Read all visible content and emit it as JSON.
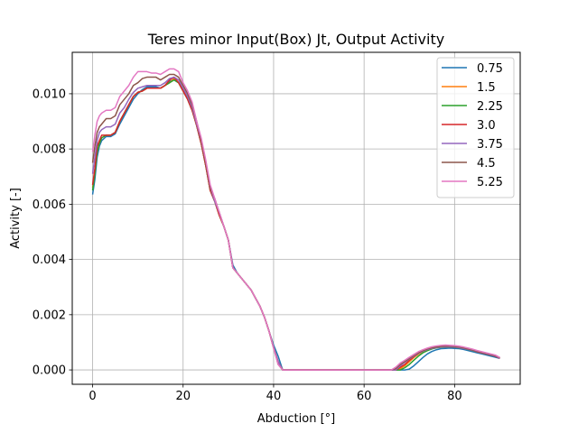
{
  "chart_data": {
    "type": "line",
    "title": "Teres minor Input(Box) Jt, Output Activity",
    "xlabel": "Abduction [°]",
    "ylabel": "Activity [-]",
    "xlim": [
      -4.5,
      94.5
    ],
    "ylim": [
      -0.00052,
      0.0115
    ],
    "x_ticks": [
      0,
      20,
      40,
      60,
      80
    ],
    "x_tick_labels": [
      "0",
      "20",
      "40",
      "60",
      "80"
    ],
    "y_ticks": [
      0.0,
      0.002,
      0.004,
      0.006,
      0.008,
      0.01
    ],
    "y_tick_labels": [
      "0.000",
      "0.002",
      "0.004",
      "0.006",
      "0.008",
      "0.010"
    ],
    "grid": true,
    "legend_position": "top-right",
    "x": [
      0,
      0.5,
      1,
      1.5,
      2,
      3,
      4,
      5,
      6,
      7,
      8,
      9,
      10,
      11,
      12,
      13,
      14,
      15,
      16,
      17,
      18,
      19,
      20,
      21,
      22,
      23,
      24,
      25,
      26,
      27,
      28,
      29,
      30,
      31,
      32,
      33,
      34,
      35,
      36,
      37,
      38,
      39,
      40,
      41,
      42,
      43,
      44,
      45,
      46,
      47,
      48,
      49,
      50,
      51,
      52,
      53,
      54,
      55,
      56,
      57,
      58,
      59,
      60,
      61,
      62,
      63,
      64,
      65,
      66,
      67,
      68,
      69,
      70,
      71,
      72,
      73,
      74,
      75,
      76,
      77,
      78,
      79,
      80,
      81,
      82,
      83,
      84,
      85,
      86,
      87,
      88,
      89,
      90
    ],
    "series": [
      {
        "name": "0.75",
        "color": "#1f77b4",
        "values": [
          0.00635,
          0.0069,
          0.0077,
          0.0081,
          0.0083,
          0.00845,
          0.00845,
          0.00855,
          0.0089,
          0.0092,
          0.0095,
          0.0098,
          0.01,
          0.01015,
          0.01025,
          0.01025,
          0.01025,
          0.0102,
          0.0103,
          0.01045,
          0.0105,
          0.0104,
          0.0101,
          0.0098,
          0.0094,
          0.00885,
          0.0082,
          0.0074,
          0.0065,
          0.0061,
          0.0056,
          0.0052,
          0.0047,
          0.0038,
          0.0035,
          0.0033,
          0.0031,
          0.0029,
          0.0026,
          0.0023,
          0.0019,
          0.0014,
          0.0009,
          0.0005,
          0.0,
          0.0,
          0.0,
          0.0,
          0.0,
          0.0,
          0.0,
          0.0,
          0.0,
          0.0,
          0.0,
          0.0,
          0.0,
          0.0,
          0.0,
          0.0,
          0.0,
          0.0,
          0.0,
          0.0,
          0.0,
          0.0,
          0.0,
          0.0,
          0.0,
          0.0,
          0.0,
          0.0,
          3e-05,
          0.00015,
          0.0003,
          0.00045,
          0.00058,
          0.00067,
          0.00073,
          0.00077,
          0.00078,
          0.00079,
          0.00078,
          0.00077,
          0.00074,
          0.0007,
          0.00066,
          0.00062,
          0.00058,
          0.00054,
          0.0005,
          0.00046,
          0.00042
        ]
      },
      {
        "name": "1.5",
        "color": "#ff7f0e",
        "values": [
          0.0066,
          0.00715,
          0.0079,
          0.0082,
          0.0084,
          0.0085,
          0.0085,
          0.0086,
          0.009,
          0.0093,
          0.0096,
          0.0099,
          0.01005,
          0.0101,
          0.0102,
          0.0102,
          0.0102,
          0.0102,
          0.0103,
          0.0104,
          0.01055,
          0.0104,
          0.0101,
          0.0098,
          0.0094,
          0.00885,
          0.0082,
          0.0074,
          0.0065,
          0.0061,
          0.0056,
          0.0052,
          0.0047,
          0.0037,
          0.0035,
          0.0033,
          0.0031,
          0.0029,
          0.0026,
          0.0023,
          0.0019,
          0.0014,
          0.0008,
          0.0003,
          0.0,
          0.0,
          0.0,
          0.0,
          0.0,
          0.0,
          0.0,
          0.0,
          0.0,
          0.0,
          0.0,
          0.0,
          0.0,
          0.0,
          0.0,
          0.0,
          0.0,
          0.0,
          0.0,
          0.0,
          0.0,
          0.0,
          0.0,
          0.0,
          0.0,
          0.0,
          5e-05,
          0.00015,
          0.0003,
          0.00045,
          0.00057,
          0.00067,
          0.00074,
          0.0008,
          0.00083,
          0.00085,
          0.00085,
          0.00085,
          0.00084,
          0.00082,
          0.00079,
          0.00075,
          0.00071,
          0.00066,
          0.00062,
          0.00058,
          0.00054,
          0.0005,
          0.00043
        ]
      },
      {
        "name": "2.25",
        "color": "#2ca02c",
        "values": [
          0.0065,
          0.0071,
          0.0079,
          0.0082,
          0.0084,
          0.0085,
          0.0085,
          0.0086,
          0.009,
          0.0093,
          0.0096,
          0.0099,
          0.01005,
          0.0101,
          0.0102,
          0.0102,
          0.0102,
          0.0102,
          0.0103,
          0.0104,
          0.0105,
          0.0104,
          0.0101,
          0.0098,
          0.0094,
          0.00885,
          0.0082,
          0.0074,
          0.0065,
          0.0061,
          0.0056,
          0.0052,
          0.0047,
          0.0037,
          0.0035,
          0.0033,
          0.0031,
          0.0029,
          0.0026,
          0.0023,
          0.0019,
          0.0014,
          0.0008,
          0.0003,
          0.0,
          0.0,
          0.0,
          0.0,
          0.0,
          0.0,
          0.0,
          0.0,
          0.0,
          0.0,
          0.0,
          0.0,
          0.0,
          0.0,
          0.0,
          0.0,
          0.0,
          0.0,
          0.0,
          0.0,
          0.0,
          0.0,
          0.0,
          0.0,
          0.0,
          0.0,
          0.0,
          8e-05,
          0.0002,
          0.00035,
          0.0005,
          0.00062,
          0.0007,
          0.00076,
          0.0008,
          0.00082,
          0.00083,
          0.00083,
          0.00082,
          0.0008,
          0.00078,
          0.00074,
          0.0007,
          0.00066,
          0.00062,
          0.00058,
          0.00054,
          0.0005,
          0.00043
        ]
      },
      {
        "name": "3.0",
        "color": "#d62728",
        "values": [
          0.0067,
          0.0073,
          0.0081,
          0.0083,
          0.0085,
          0.0085,
          0.0085,
          0.0086,
          0.009,
          0.0093,
          0.0096,
          0.0099,
          0.01005,
          0.0101,
          0.0102,
          0.0102,
          0.0102,
          0.0102,
          0.0103,
          0.0105,
          0.0106,
          0.0104,
          0.0101,
          0.0098,
          0.0094,
          0.00885,
          0.0082,
          0.0074,
          0.0065,
          0.0061,
          0.0056,
          0.0052,
          0.0047,
          0.0037,
          0.0035,
          0.0033,
          0.0031,
          0.0029,
          0.0026,
          0.0023,
          0.0019,
          0.0014,
          0.0008,
          0.0003,
          0.0,
          0.0,
          0.0,
          0.0,
          0.0,
          0.0,
          0.0,
          0.0,
          0.0,
          0.0,
          0.0,
          0.0,
          0.0,
          0.0,
          0.0,
          0.0,
          0.0,
          0.0,
          0.0,
          0.0,
          0.0,
          0.0,
          0.0,
          0.0,
          0.0,
          0.0,
          0.0001,
          0.0002,
          0.00035,
          0.00048,
          0.0006,
          0.00068,
          0.00074,
          0.00079,
          0.00082,
          0.00084,
          0.00084,
          0.00084,
          0.00083,
          0.00081,
          0.00078,
          0.00075,
          0.00071,
          0.00066,
          0.00062,
          0.00058,
          0.00054,
          0.0005,
          0.00042
        ]
      },
      {
        "name": "3.75",
        "color": "#9467bd",
        "values": [
          0.0071,
          0.0077,
          0.0083,
          0.0086,
          0.0087,
          0.0088,
          0.0088,
          0.0089,
          0.0093,
          0.0095,
          0.0098,
          0.01005,
          0.0102,
          0.01025,
          0.0103,
          0.0103,
          0.0103,
          0.0103,
          0.0104,
          0.01055,
          0.0106,
          0.0105,
          0.0102,
          0.0099,
          0.0095,
          0.0089,
          0.0083,
          0.0075,
          0.0066,
          0.0061,
          0.0057,
          0.0052,
          0.0047,
          0.0037,
          0.0035,
          0.0033,
          0.0031,
          0.0029,
          0.0026,
          0.0023,
          0.0019,
          0.0014,
          0.0008,
          0.0003,
          0.0,
          0.0,
          0.0,
          0.0,
          0.0,
          0.0,
          0.0,
          0.0,
          0.0,
          0.0,
          0.0,
          0.0,
          0.0,
          0.0,
          0.0,
          0.0,
          0.0,
          0.0,
          0.0,
          0.0,
          0.0,
          0.0,
          0.0,
          0.0,
          0.0,
          0.0,
          0.00015,
          0.00028,
          0.0004,
          0.0005,
          0.0006,
          0.00068,
          0.00074,
          0.00078,
          0.00081,
          0.00083,
          0.00084,
          0.00084,
          0.00083,
          0.00081,
          0.00078,
          0.00075,
          0.00071,
          0.00067,
          0.00063,
          0.00059,
          0.00055,
          0.00051,
          0.00043
        ]
      },
      {
        "name": "4.5",
        "color": "#8c564b",
        "values": [
          0.0075,
          0.0081,
          0.0086,
          0.0088,
          0.0089,
          0.0091,
          0.0091,
          0.0092,
          0.0096,
          0.0098,
          0.01,
          0.0103,
          0.0104,
          0.01055,
          0.0106,
          0.0106,
          0.0106,
          0.0105,
          0.0106,
          0.0107,
          0.0107,
          0.0106,
          0.0103,
          0.01,
          0.0096,
          0.009,
          0.0083,
          0.0075,
          0.0066,
          0.0062,
          0.0057,
          0.0052,
          0.0047,
          0.0037,
          0.0035,
          0.0033,
          0.0031,
          0.0029,
          0.0026,
          0.0023,
          0.0019,
          0.0014,
          0.0008,
          0.0002,
          0.0,
          0.0,
          0.0,
          0.0,
          0.0,
          0.0,
          0.0,
          0.0,
          0.0,
          0.0,
          0.0,
          0.0,
          0.0,
          0.0,
          0.0,
          0.0,
          0.0,
          0.0,
          0.0,
          0.0,
          0.0,
          0.0,
          0.0,
          0.0,
          0.0,
          5e-05,
          0.0002,
          0.0003,
          0.00042,
          0.00052,
          0.00062,
          0.0007,
          0.00076,
          0.0008,
          0.00083,
          0.00085,
          0.00086,
          0.00086,
          0.00085,
          0.00083,
          0.0008,
          0.00076,
          0.00072,
          0.00068,
          0.00064,
          0.0006,
          0.00056,
          0.00052,
          0.00044
        ]
      },
      {
        "name": "5.25",
        "color": "#e377c2",
        "values": [
          0.0079,
          0.0085,
          0.009,
          0.0092,
          0.0093,
          0.0094,
          0.0094,
          0.0095,
          0.0099,
          0.0101,
          0.0103,
          0.0106,
          0.0108,
          0.0108,
          0.0108,
          0.01075,
          0.01075,
          0.0107,
          0.0108,
          0.0109,
          0.0109,
          0.0108,
          0.0104,
          0.0101,
          0.0097,
          0.009,
          0.0084,
          0.0076,
          0.0067,
          0.0062,
          0.0057,
          0.0052,
          0.0047,
          0.0037,
          0.0035,
          0.0033,
          0.0031,
          0.0029,
          0.0026,
          0.0023,
          0.0019,
          0.0014,
          0.0008,
          0.0002,
          0.0,
          0.0,
          0.0,
          0.0,
          0.0,
          0.0,
          0.0,
          0.0,
          0.0,
          0.0,
          0.0,
          0.0,
          0.0,
          0.0,
          0.0,
          0.0,
          0.0,
          0.0,
          0.0,
          0.0,
          0.0,
          0.0,
          0.0,
          0.0,
          0.0,
          0.0001,
          0.00025,
          0.00035,
          0.00046,
          0.00056,
          0.00066,
          0.00073,
          0.00079,
          0.00084,
          0.00087,
          0.00089,
          0.0009,
          0.00089,
          0.00088,
          0.00086,
          0.00083,
          0.00079,
          0.00075,
          0.0007,
          0.00066,
          0.00062,
          0.00058,
          0.00054,
          0.00045
        ]
      }
    ]
  }
}
